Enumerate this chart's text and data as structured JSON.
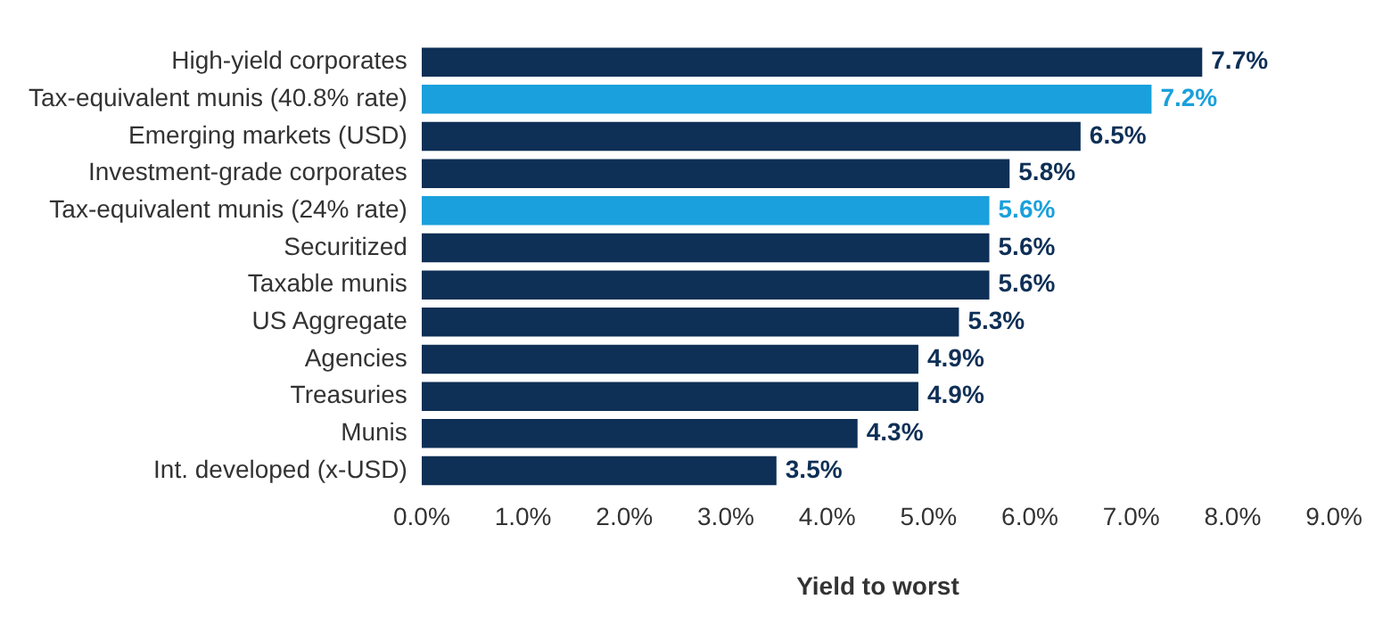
{
  "chart_data": {
    "type": "bar",
    "orientation": "horizontal",
    "xlabel": "Yield to worst",
    "categories": [
      "High-yield corporates",
      "Tax-equivalent munis (40.8% rate)",
      "Emerging markets (USD)",
      "Investment-grade corporates",
      "Tax-equivalent munis (24% rate)",
      "Securitized",
      "Taxable munis",
      "US Aggregate",
      "Agencies",
      "Treasuries",
      "Munis",
      "Int. developed (x-USD)"
    ],
    "values": [
      7.7,
      7.2,
      6.5,
      5.8,
      5.6,
      5.6,
      5.6,
      5.3,
      4.9,
      4.9,
      4.3,
      3.5
    ],
    "colors": [
      "#0e2f56",
      "#1aa0dc",
      "#0e2f56",
      "#0e2f56",
      "#1aa0dc",
      "#0e2f56",
      "#0e2f56",
      "#0e2f56",
      "#0e2f56",
      "#0e2f56",
      "#0e2f56",
      "#0e2f56"
    ],
    "value_labels": [
      "7.7%",
      "7.2%",
      "6.5%",
      "5.8%",
      "5.6%",
      "5.6%",
      "5.6%",
      "5.3%",
      "4.9%",
      "4.9%",
      "4.3%",
      "3.5%"
    ],
    "xlim": [
      0,
      9
    ],
    "xticks": [
      {
        "value": 0,
        "label": "0.0%"
      },
      {
        "value": 1,
        "label": "1.0%"
      },
      {
        "value": 2,
        "label": "2.0%"
      },
      {
        "value": 3,
        "label": "3.0%"
      },
      {
        "value": 4,
        "label": "4.0%"
      },
      {
        "value": 5,
        "label": "5.0%"
      },
      {
        "value": 6,
        "label": "6.0%"
      },
      {
        "value": 7,
        "label": "7.0%"
      },
      {
        "value": 8,
        "label": "8.0%"
      },
      {
        "value": 9,
        "label": "9.0%"
      }
    ],
    "grid": false,
    "legend": false
  }
}
